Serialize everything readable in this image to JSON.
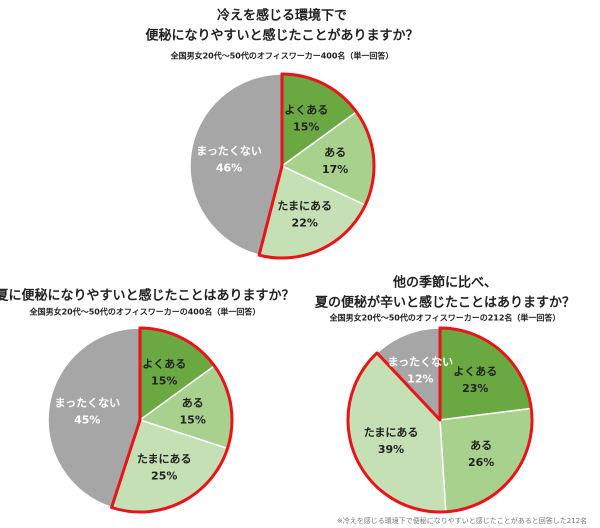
{
  "chart_data": [
    {
      "type": "pie",
      "title": [
        "冷えを感じる環境下で",
        "便秘になりやすいと感じたことがありますか？"
      ],
      "subtitle": "全国男女20代～50代のオフィスワーカー400名（単一回答）",
      "categories": [
        "よくある",
        "ある",
        "たまにある",
        "まったくない"
      ],
      "values": [
        15,
        17,
        22,
        46
      ],
      "value_labels": [
        "15%",
        "17%",
        "22%",
        "46%"
      ],
      "colors": [
        "#6aa842",
        "#a9d18e",
        "#c5e0b4",
        "#a6a6a6"
      ]
    },
    {
      "type": "pie",
      "title": [
        "夏に便秘になりやすいと感じたことはありますか？"
      ],
      "subtitle": "全国男女20代～50代のオフィスワーカーの400名（単一回答）",
      "categories": [
        "よくある",
        "ある",
        "たまにある",
        "まったくない"
      ],
      "values": [
        15,
        15,
        25,
        45
      ],
      "value_labels": [
        "15%",
        "15%",
        "25%",
        "45%"
      ],
      "colors": [
        "#6aa842",
        "#a9d18e",
        "#c5e0b4",
        "#a6a6a6"
      ]
    },
    {
      "type": "pie",
      "title": [
        "他の季節に比べ、",
        "夏の便秘が辛いと感じたことはありますか？"
      ],
      "subtitle": "全国男女20代～50代のオフィスワーカーの212名（単一回答）",
      "categories": [
        "よくある",
        "ある",
        "たまにある",
        "まったくない"
      ],
      "values": [
        23,
        26,
        39,
        12
      ],
      "value_labels": [
        "23%",
        "26%",
        "39%",
        "12%"
      ],
      "colors": [
        "#6aa842",
        "#a9d18e",
        "#c5e0b4",
        "#a6a6a6"
      ],
      "note": "※冷えを感じる環境下で便秘になりやすいと感じたことがあると回答した212名"
    }
  ]
}
